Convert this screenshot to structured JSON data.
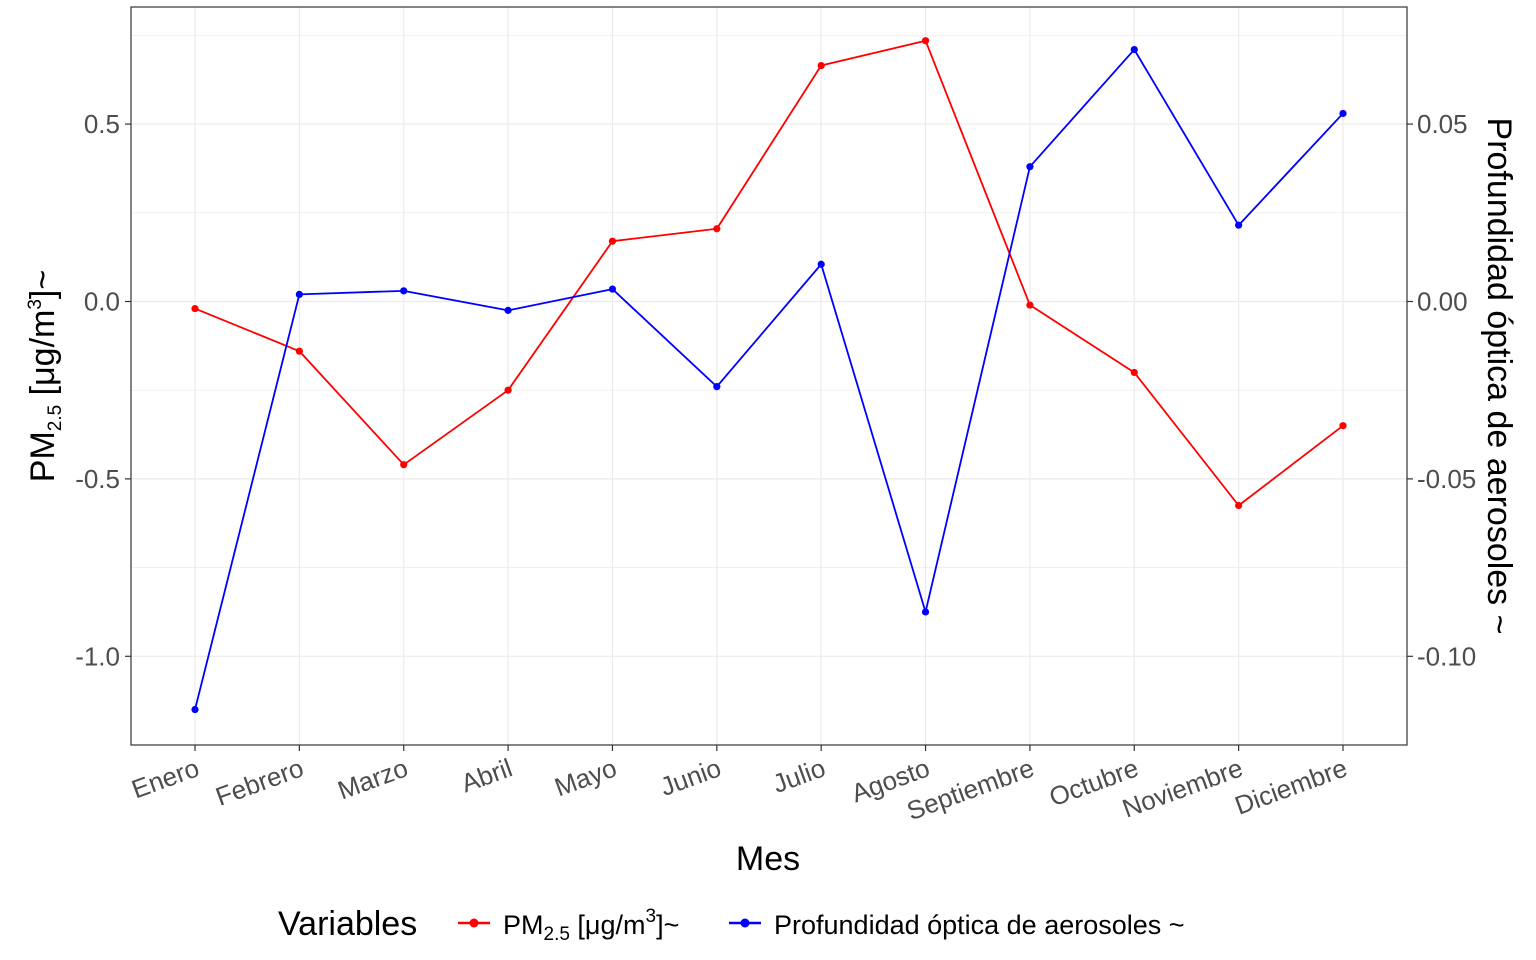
{
  "chart_data": {
    "type": "line",
    "categories": [
      "Enero",
      "Febrero",
      "Marzo",
      "Abril",
      "Mayo",
      "Junio",
      "Julio",
      "Agosto",
      "Septiembre",
      "Octubre",
      "Noviembre",
      "Diciembre"
    ],
    "xlabel": "Mes",
    "ylabel_left": {
      "main": "PM",
      "sub": "2.5",
      "rest": " [μg/m",
      "sup": "3",
      "end": "]~"
    },
    "ylabel_right": "Profundidad óptica de aerosoles  ~",
    "ylim_left": [
      -1.25,
      0.83
    ],
    "ylim_right": [
      -0.125,
      0.083
    ],
    "yticks_left": [
      0.5,
      0.0,
      -0.5,
      -1.0
    ],
    "yticks_left_labels": [
      "0.5",
      "0.0",
      "-0.5",
      "-1.0"
    ],
    "yticks_right": [
      0.05,
      0.0,
      -0.05,
      -0.1
    ],
    "yticks_right_labels": [
      "0.05",
      "0.00",
      "-0.05",
      "-0.10"
    ],
    "grid": true,
    "legend": {
      "title": "Variables",
      "placement": "bottom",
      "pm_label": {
        "main": "PM",
        "sub": "2.5",
        "rest": " [μg/m",
        "sup": "3",
        "end": "]~"
      },
      "aod_label": "Profundidad óptica de aerosoles  ~"
    },
    "series": [
      {
        "name": "PM2.5 [μg/m3]~",
        "color": "#ff0000",
        "axis": "left",
        "values": [
          -0.02,
          -0.14,
          -0.46,
          -0.25,
          0.17,
          0.205,
          0.665,
          0.735,
          -0.01,
          -0.2,
          -0.575,
          -0.35
        ]
      },
      {
        "name": "Profundidad óptica de aerosoles  ~",
        "color": "#0000ff",
        "axis": "right",
        "values": [
          -0.115,
          0.002,
          0.003,
          -0.0025,
          0.0035,
          -0.024,
          0.0105,
          -0.0875,
          0.038,
          0.071,
          0.0215,
          0.053
        ]
      }
    ]
  }
}
